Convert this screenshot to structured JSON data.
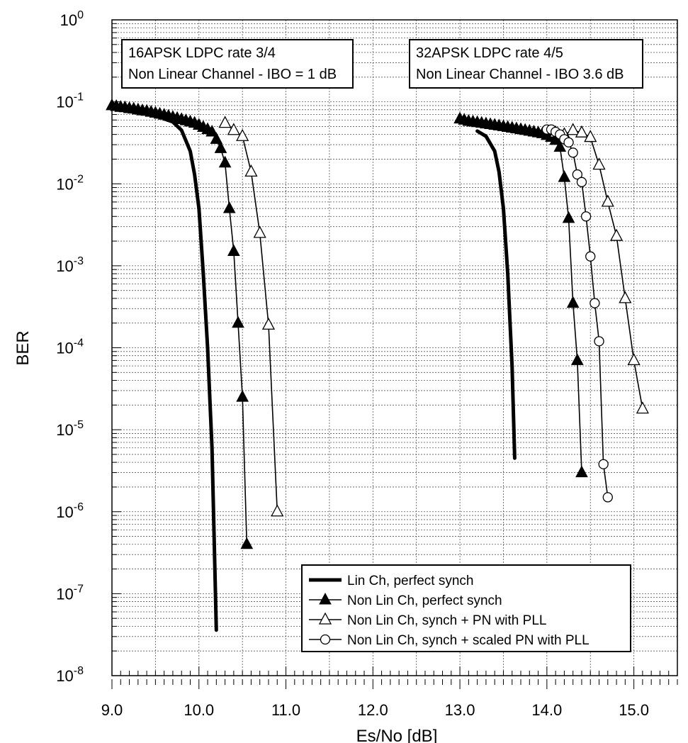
{
  "chart_data": {
    "type": "line",
    "xlabel": "Es/No [dB]",
    "ylabel": "BER",
    "xlim": [
      9.0,
      15.5
    ],
    "ylim": [
      1e-08,
      1
    ],
    "yscale": "log",
    "grid": true,
    "grid_style": "dotted",
    "x_ticks": [
      "9.0",
      "10.0",
      "11.0",
      "12.0",
      "13.0",
      "14.0",
      "15.0"
    ],
    "y_ticks": [
      {
        "base": "10",
        "exp": "0"
      },
      {
        "base": "10",
        "exp": "-1"
      },
      {
        "base": "10",
        "exp": "-2"
      },
      {
        "base": "10",
        "exp": "-3"
      },
      {
        "base": "10",
        "exp": "-4"
      },
      {
        "base": "10",
        "exp": "-5"
      },
      {
        "base": "10",
        "exp": "-6"
      },
      {
        "base": "10",
        "exp": "-7"
      },
      {
        "base": "10",
        "exp": "-8"
      }
    ],
    "annotations": [
      {
        "lines": [
          "16APSK LDPC rate 3/4",
          "Non Linear Channel - IBO = 1 dB"
        ],
        "position": "top-left"
      },
      {
        "lines": [
          "32APSK LDPC rate 4/5",
          "Non Linear Channel - IBO 3.6 dB"
        ],
        "position": "top-center"
      }
    ],
    "legend_position": "bottom-right",
    "series": [
      {
        "name": "Lin Ch, perfect synch",
        "style": "thick-line",
        "color": "#000000",
        "segments": [
          [
            [
              9.6,
              0.062
            ],
            [
              9.7,
              0.057
            ],
            [
              9.8,
              0.045
            ],
            [
              9.9,
              0.025
            ],
            [
              9.95,
              0.013
            ],
            [
              10.0,
              0.005
            ],
            [
              10.05,
              0.0008
            ],
            [
              10.1,
              0.0001
            ],
            [
              10.15,
              6e-06
            ],
            [
              10.2,
              3.6e-08
            ]
          ],
          [
            [
              13.2,
              0.044
            ],
            [
              13.3,
              0.038
            ],
            [
              13.4,
              0.025
            ],
            [
              13.45,
              0.014
            ],
            [
              13.5,
              0.005
            ],
            [
              13.55,
              0.0008
            ],
            [
              13.6,
              6e-05
            ],
            [
              13.63,
              4.5e-06
            ]
          ]
        ]
      },
      {
        "name": "Non Lin Ch, perfect synch",
        "style": "line-filled-triangle",
        "color": "#000000",
        "segments": [
          [
            [
              9.0,
              0.09
            ],
            [
              9.05,
              0.088
            ],
            [
              9.1,
              0.086
            ],
            [
              9.15,
              0.085
            ],
            [
              9.2,
              0.083
            ],
            [
              9.25,
              0.082
            ],
            [
              9.3,
              0.08
            ],
            [
              9.35,
              0.078
            ],
            [
              9.4,
              0.077
            ],
            [
              9.45,
              0.075
            ],
            [
              9.5,
              0.073
            ],
            [
              9.55,
              0.071
            ],
            [
              9.6,
              0.069
            ],
            [
              9.65,
              0.067
            ],
            [
              9.7,
              0.065
            ],
            [
              9.75,
              0.063
            ],
            [
              9.8,
              0.061
            ],
            [
              9.85,
              0.059
            ],
            [
              9.9,
              0.057
            ],
            [
              9.95,
              0.055
            ],
            [
              10.0,
              0.052
            ],
            [
              10.05,
              0.049
            ],
            [
              10.1,
              0.046
            ],
            [
              10.15,
              0.043
            ],
            [
              10.2,
              0.035
            ],
            [
              10.25,
              0.027
            ],
            [
              10.3,
              0.018
            ],
            [
              10.35,
              0.005
            ],
            [
              10.4,
              0.0015
            ],
            [
              10.45,
              0.0002
            ],
            [
              10.5,
              2.5e-05
            ],
            [
              10.55,
              4e-07
            ]
          ],
          [
            [
              13.0,
              0.062
            ],
            [
              13.05,
              0.06
            ],
            [
              13.1,
              0.058
            ],
            [
              13.15,
              0.057
            ],
            [
              13.2,
              0.056
            ],
            [
              13.25,
              0.055
            ],
            [
              13.3,
              0.054
            ],
            [
              13.35,
              0.053
            ],
            [
              13.4,
              0.052
            ],
            [
              13.45,
              0.051
            ],
            [
              13.5,
              0.05
            ],
            [
              13.55,
              0.049
            ],
            [
              13.6,
              0.048
            ],
            [
              13.65,
              0.047
            ],
            [
              13.7,
              0.046
            ],
            [
              13.75,
              0.045
            ],
            [
              13.8,
              0.044
            ],
            [
              13.85,
              0.043
            ],
            [
              13.9,
              0.042
            ],
            [
              13.95,
              0.041
            ],
            [
              14.0,
              0.039
            ],
            [
              14.05,
              0.037
            ],
            [
              14.1,
              0.034
            ],
            [
              14.15,
              0.028
            ],
            [
              14.2,
              0.012
            ],
            [
              14.25,
              0.0038
            ],
            [
              14.3,
              0.00035
            ],
            [
              14.35,
              7e-05
            ],
            [
              14.4,
              3e-06
            ]
          ]
        ]
      },
      {
        "name": "Non Lin Ch, synch + PN with PLL",
        "style": "line-open-triangle",
        "color": "#000000",
        "segments": [
          [
            [
              10.3,
              0.055
            ],
            [
              10.4,
              0.045
            ],
            [
              10.5,
              0.038
            ],
            [
              10.6,
              0.014
            ],
            [
              10.7,
              0.0025
            ],
            [
              10.8,
              0.00019
            ],
            [
              10.9,
              1e-06
            ]
          ],
          [
            [
              14.1,
              0.042
            ],
            [
              14.2,
              0.04
            ],
            [
              14.3,
              0.045
            ],
            [
              14.4,
              0.042
            ],
            [
              14.5,
              0.037
            ],
            [
              14.6,
              0.017
            ],
            [
              14.7,
              0.006
            ],
            [
              14.8,
              0.0023
            ],
            [
              14.9,
              0.0004
            ],
            [
              15.0,
              7e-05
            ],
            [
              15.1,
              1.8e-05
            ]
          ]
        ]
      },
      {
        "name": "Non Lin Ch, synch + scaled PN with PLL",
        "style": "line-open-circle",
        "color": "#000000",
        "segments": [
          [
            [
              14.0,
              0.046
            ],
            [
              14.05,
              0.046
            ],
            [
              14.1,
              0.043
            ],
            [
              14.15,
              0.04
            ],
            [
              14.2,
              0.035
            ],
            [
              14.25,
              0.032
            ],
            [
              14.3,
              0.024
            ],
            [
              14.35,
              0.013
            ],
            [
              14.4,
              0.0105
            ],
            [
              14.45,
              0.004
            ],
            [
              14.5,
              0.0013
            ],
            [
              14.55,
              0.00035
            ],
            [
              14.6,
              0.00012
            ],
            [
              14.65,
              3.8e-06
            ],
            [
              14.7,
              1.5e-06
            ]
          ]
        ]
      }
    ]
  }
}
